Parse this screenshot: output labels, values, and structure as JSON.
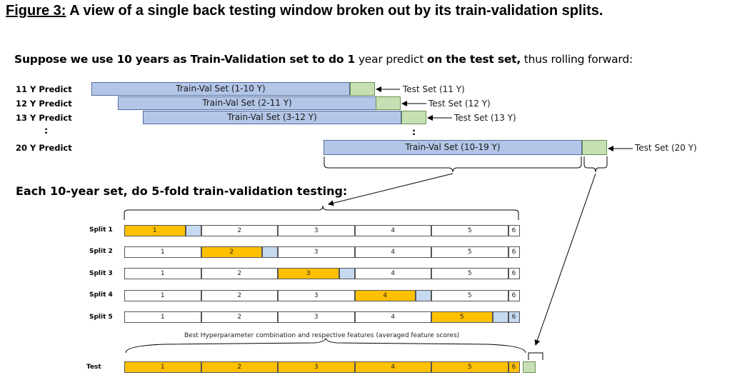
{
  "figure": {
    "number_label": "Figure 3:",
    "title": " A view of a single back testing window broken out by its train-validation splits."
  },
  "intro": {
    "lead": "Suppose we use 10 years as Train-Validation set to do 1 year predict on the test set, thus rolling forward:"
  },
  "rolling": {
    "rows": [
      {
        "label": "11 Y Predict",
        "train": "Train-Val Set (1-10 Y)",
        "test": "Test Set (11 Y)"
      },
      {
        "label": "12 Y Predict",
        "train": "Train-Val Set (2-11 Y)",
        "test": "Test Set (12 Y)"
      },
      {
        "label": "13 Y Predict",
        "train": "Train-Val Set (3-12 Y)",
        "test": "Test Set (13 Y)"
      },
      {
        "label": "20 Y Predict",
        "train": "Train-Val Set (10-19 Y)",
        "test": "Test Set (20 Y)"
      }
    ],
    "ellipsis": ":"
  },
  "section2": {
    "title": "Each 10-year set, do 5-fold train-validation testing:"
  },
  "folds": {
    "labels": [
      "1",
      "2",
      "3",
      "4",
      "5",
      "6"
    ],
    "splits": [
      {
        "label": "Split 1"
      },
      {
        "label": "Split 2"
      },
      {
        "label": "Split 3"
      },
      {
        "label": "Split 4"
      },
      {
        "label": "Split 5"
      }
    ],
    "test_row": {
      "label": "Test"
    },
    "caption": "Best Hyperparameter combination and respective features (averaged feature scores)"
  },
  "colors": {
    "train_val": "#b4c6e7",
    "test_set": "#c6e0b4",
    "validation_fold": "#ffc000",
    "gap_fold": "#c5d9f1"
  }
}
